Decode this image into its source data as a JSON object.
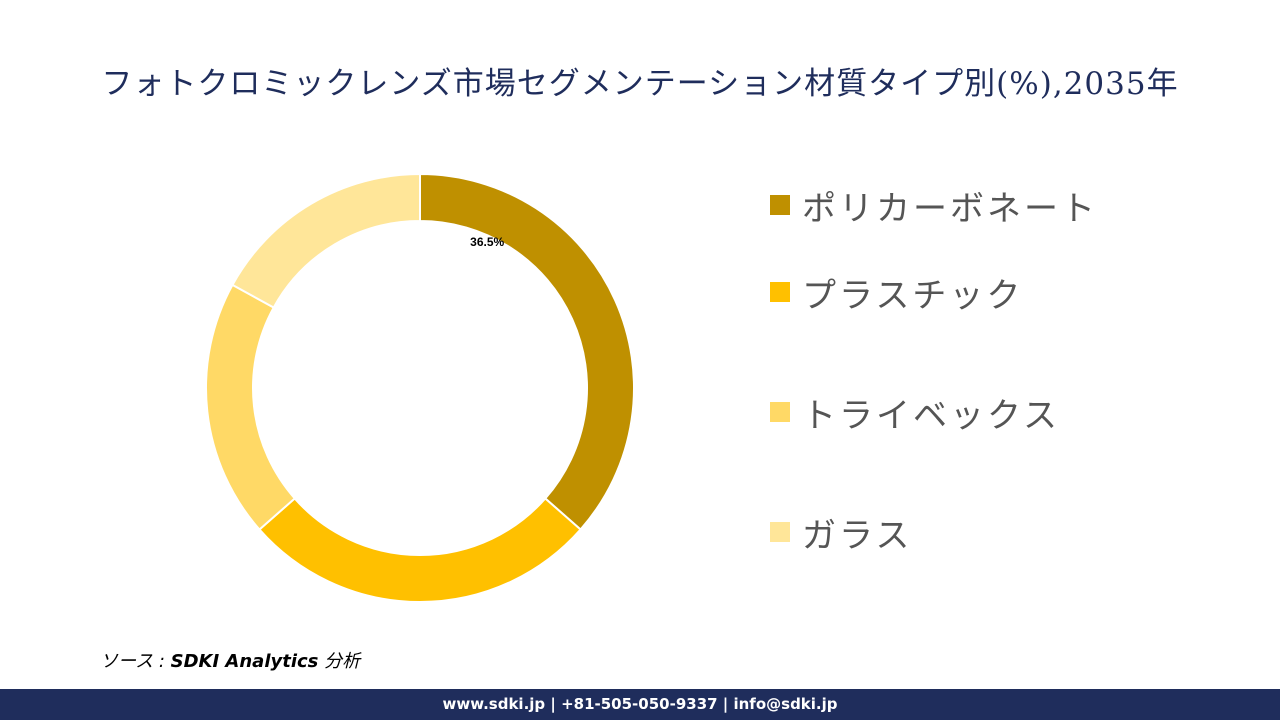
{
  "title": "フォトクロミックレンズ市場セグメンテーション材質タイプ別(%),2035年",
  "chart_data": {
    "type": "pie",
    "donut": true,
    "categories": [
      "ポリカーボネート",
      "プラスチック",
      "トライベックス",
      "ガラス"
    ],
    "values": [
      36.5,
      27.0,
      19.5,
      17.0
    ],
    "colors": [
      "#bf9000",
      "#ffc000",
      "#ffd966",
      "#ffe699"
    ],
    "data_labels": [
      "36.5%",
      null,
      null,
      null
    ],
    "legend_position": "right"
  },
  "source": {
    "prefix": "ソース : ",
    "name": "SDKI Analytics",
    "suffix": " 分析"
  },
  "footer": {
    "text": "www.sdki.jp | +81-505-050-9337 | info@sdki.jp"
  }
}
